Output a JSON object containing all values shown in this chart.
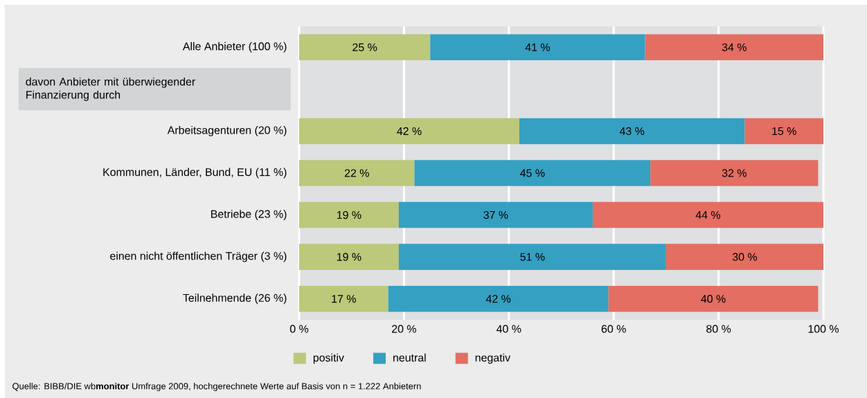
{
  "chart_data": {
    "type": "bar",
    "orientation": "horizontal",
    "stacked": true,
    "categories": [
      "Alle Anbieter (100 %)",
      null,
      "Arbeitsagenturen (20 %)",
      "Kommunen, Länder, Bund, EU (11 %)",
      "Betriebe (23 %)",
      "einen nicht öffentlichen Träger (3 %)",
      "Teilnehmende (26 %)"
    ],
    "series": [
      {
        "name": "positiv",
        "color": "#bcc87a",
        "values": [
          25,
          null,
          42,
          22,
          19,
          19,
          17
        ],
        "value_labels": [
          "25 %",
          null,
          "42 %",
          "22 %",
          "19 %",
          "19 %",
          "17 %"
        ]
      },
      {
        "name": "neutral",
        "color": "#35a0c2",
        "values": [
          41,
          null,
          43,
          45,
          37,
          51,
          42
        ],
        "value_labels": [
          "41 %",
          null,
          "43 %",
          "45 %",
          "37 %",
          "51 %",
          "42 %"
        ]
      },
      {
        "name": "negativ",
        "color": "#e46e62",
        "values": [
          34,
          null,
          15,
          32,
          44,
          30,
          40
        ],
        "value_labels": [
          "34 %",
          null,
          "15 %",
          "32 %",
          "44 %",
          "30 %",
          "40 %"
        ]
      }
    ],
    "xlim": [
      0,
      100
    ],
    "xticks": [
      {
        "value": 0,
        "label": "0 %"
      },
      {
        "value": 20,
        "label": "20 %"
      },
      {
        "value": 40,
        "label": "40 %"
      },
      {
        "value": 60,
        "label": "60 %"
      },
      {
        "value": 80,
        "label": "80 %"
      },
      {
        "value": 100,
        "label": "100 %"
      }
    ],
    "grid": "x",
    "legend": "bottom",
    "annotations": [
      "davon Anbieter mit überwiegender Finanzierung durch",
      "Quelle: BIBB/DIE wb**monitor** Umfrage 2009, hochgerechnete Werte auf Basis von n = 1.222 Anbietern"
    ]
  }
}
